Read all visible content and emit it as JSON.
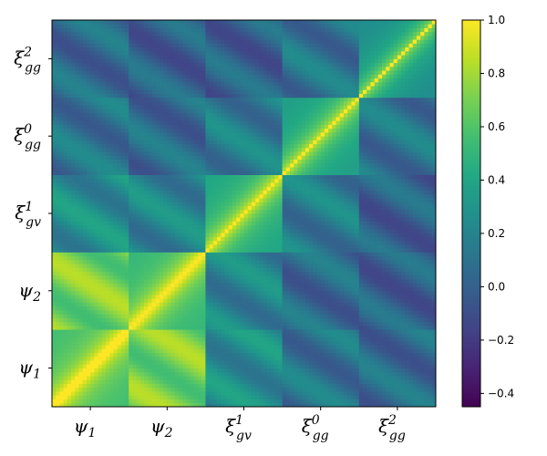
{
  "chart_data": {
    "type": "heatmap",
    "title": "",
    "xlabel": "",
    "ylabel": "",
    "blocks": [
      {
        "key": "psi1",
        "sym": "ψ",
        "sub": "1",
        "sup": ""
      },
      {
        "key": "psi2",
        "sym": "ψ",
        "sub": "2",
        "sup": ""
      },
      {
        "key": "xi_gv_1",
        "sym": "ξ",
        "sub": "gv",
        "sup": "1"
      },
      {
        "key": "xi_gg_0",
        "sym": "ξ",
        "sub": "gg",
        "sup": "0"
      },
      {
        "key": "xi_gg_2",
        "sym": "ξ",
        "sub": "gg",
        "sup": "2"
      }
    ],
    "x_order": "left-to-right",
    "y_order": "bottom-to-top",
    "bins_per_block": 20,
    "block_correlation_mean": [
      [
        0.9,
        0.7,
        0.25,
        0.1,
        0.05
      ],
      [
        0.7,
        0.85,
        0.2,
        0.05,
        0.0
      ],
      [
        0.25,
        0.2,
        0.75,
        0.15,
        0.0
      ],
      [
        0.1,
        0.05,
        0.15,
        0.7,
        0.1
      ],
      [
        0.05,
        0.0,
        0.0,
        0.1,
        0.6
      ]
    ],
    "diagonal_value": 1.0,
    "colormap": "viridis",
    "clim": [
      -0.45,
      1.0
    ],
    "colorbar": {
      "ticks": [
        1.0,
        0.8,
        0.6,
        0.4,
        0.2,
        0.0,
        -0.2,
        -0.4
      ],
      "tick_labels": [
        "1.0",
        "0.8",
        "0.6",
        "0.4",
        "0.2",
        "0.0",
        "−0.2",
        "−0.4"
      ],
      "position": "right"
    }
  }
}
